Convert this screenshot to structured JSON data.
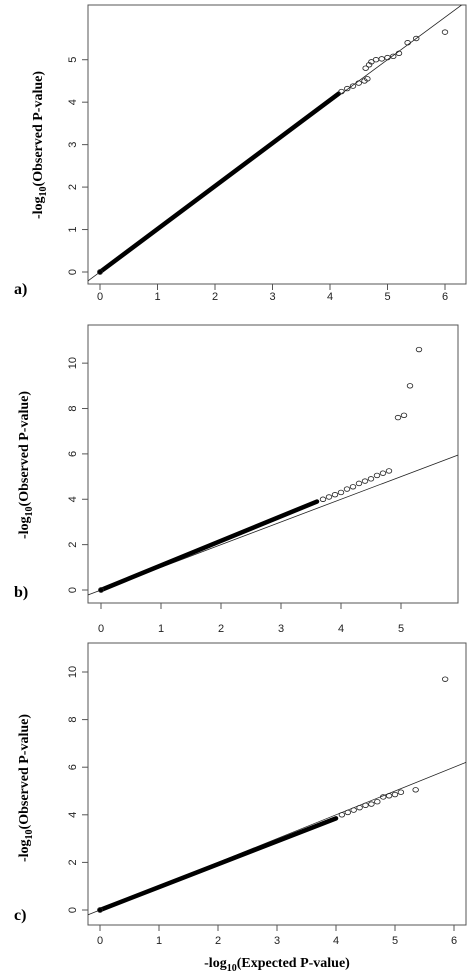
{
  "chart_data": [
    {
      "type": "scatter",
      "panel_label": "a)",
      "xlabel": "",
      "ylabel_prefix": "-log",
      "ylabel_sub": "10",
      "ylabel_suffix": "(Observed P-value)",
      "xlim": [
        0,
        6
      ],
      "ylim": [
        0,
        5.7
      ],
      "x_ticks": [
        "0",
        "1",
        "2",
        "3",
        "4",
        "5",
        "6"
      ],
      "y_ticks": [
        "0",
        "1",
        "2",
        "3",
        "4",
        "5"
      ],
      "reference_line": "y = x",
      "dense_segment": {
        "from": [
          0,
          0
        ],
        "to": [
          4.15,
          4.2
        ]
      },
      "points": [
        [
          4.2,
          4.25
        ],
        [
          4.3,
          4.32
        ],
        [
          4.4,
          4.38
        ],
        [
          4.5,
          4.45
        ],
        [
          4.6,
          4.5
        ],
        [
          4.65,
          4.55
        ],
        [
          4.62,
          4.8
        ],
        [
          4.68,
          4.88
        ],
        [
          4.72,
          4.95
        ],
        [
          4.8,
          5.0
        ],
        [
          4.9,
          5.02
        ],
        [
          5.0,
          5.05
        ],
        [
          5.1,
          5.08
        ],
        [
          5.2,
          5.15
        ],
        [
          5.35,
          5.4
        ],
        [
          5.5,
          5.5
        ],
        [
          6.0,
          5.65
        ]
      ]
    },
    {
      "type": "scatter",
      "panel_label": "b)",
      "xlabel": "",
      "ylabel_prefix": "-log",
      "ylabel_sub": "10",
      "ylabel_suffix": "(Observed P-value)",
      "xlim": [
        0,
        5.4
      ],
      "ylim": [
        0,
        10.8
      ],
      "x_ticks": [
        "0",
        "1",
        "2",
        "3",
        "4",
        "5"
      ],
      "y_ticks": [
        "0",
        "2",
        "4",
        "6",
        "8",
        "10"
      ],
      "reference_line": "y = x",
      "dense_segment": {
        "from": [
          0,
          0
        ],
        "to": [
          3.6,
          3.9
        ]
      },
      "points": [
        [
          3.7,
          4.0
        ],
        [
          3.8,
          4.1
        ],
        [
          3.9,
          4.2
        ],
        [
          4.0,
          4.3
        ],
        [
          4.1,
          4.45
        ],
        [
          4.2,
          4.55
        ],
        [
          4.3,
          4.7
        ],
        [
          4.4,
          4.8
        ],
        [
          4.5,
          4.9
        ],
        [
          4.6,
          5.05
        ],
        [
          4.7,
          5.15
        ],
        [
          4.8,
          5.25
        ],
        [
          4.95,
          7.6
        ],
        [
          5.05,
          7.7
        ],
        [
          5.15,
          9.0
        ],
        [
          5.3,
          10.6
        ]
      ]
    },
    {
      "type": "scatter",
      "panel_label": "c)",
      "xlabel_prefix": "-log",
      "xlabel_sub": "10",
      "xlabel_suffix": "(Expected P-value)",
      "ylabel_prefix": "-log",
      "ylabel_sub": "10",
      "ylabel_suffix": "(Observed P-value)",
      "xlim": [
        0,
        6
      ],
      "ylim": [
        0,
        10
      ],
      "x_ticks": [
        "0",
        "1",
        "2",
        "3",
        "4",
        "5",
        "6"
      ],
      "y_ticks": [
        "0",
        "2",
        "4",
        "6",
        "8",
        "10"
      ],
      "reference_line": "y = x",
      "dense_segment": {
        "from": [
          0,
          0
        ],
        "to": [
          4.0,
          3.85
        ]
      },
      "points": [
        [
          4.1,
          4.0
        ],
        [
          4.2,
          4.1
        ],
        [
          4.3,
          4.2
        ],
        [
          4.4,
          4.3
        ],
        [
          4.5,
          4.4
        ],
        [
          4.6,
          4.45
        ],
        [
          4.7,
          4.55
        ],
        [
          4.8,
          4.75
        ],
        [
          4.9,
          4.8
        ],
        [
          5.0,
          4.85
        ],
        [
          5.1,
          4.95
        ],
        [
          5.35,
          5.05
        ],
        [
          5.85,
          9.7
        ]
      ]
    }
  ]
}
